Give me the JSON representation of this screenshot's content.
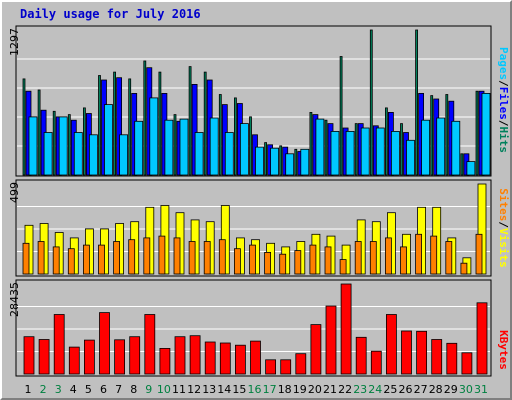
{
  "colors": {
    "hits": "#00805c",
    "files": "#0000ff",
    "pages": "#00c8ff",
    "visits": "#ffff00",
    "sites": "#ff8000",
    "kbytes": "#ff0000",
    "title": "#0000cc",
    "weekend": "#008040",
    "weekday": "#000000",
    "grid": "#ffffff"
  },
  "weekend_days": [
    2,
    3,
    9,
    10,
    16,
    17,
    23,
    24,
    30,
    31
  ],
  "chart_data": {
    "type": "bar",
    "title": "Daily usage for July 2016",
    "categories": [
      "1",
      "2",
      "3",
      "4",
      "5",
      "6",
      "7",
      "8",
      "9",
      "10",
      "11",
      "12",
      "13",
      "14",
      "15",
      "16",
      "17",
      "18",
      "19",
      "20",
      "21",
      "22",
      "23",
      "24",
      "25",
      "26",
      "27",
      "28",
      "29",
      "30",
      "31"
    ],
    "panels": [
      {
        "name": "top",
        "ymax_label": "1297",
        "ymax": 1297,
        "series": [
          {
            "name": "Hits",
            "values": [
              860,
              760,
              570,
              540,
              600,
              890,
              920,
              860,
              1020,
              920,
              540,
              970,
              920,
              720,
              690,
              520,
              290,
              260,
              230,
              560,
              490,
              1060,
              460,
              1297,
              600,
              460,
              1297,
              710,
              720,
              190,
              750
            ]
          },
          {
            "name": "Files",
            "values": [
              750,
              580,
              520,
              490,
              550,
              850,
              870,
              730,
              960,
              730,
              480,
              810,
              850,
              630,
              640,
              360,
              270,
              250,
              210,
              540,
              460,
              420,
              460,
              440,
              560,
              380,
              730,
              680,
              660,
              190,
              750
            ]
          },
          {
            "name": "Pages",
            "values": [
              520,
              380,
              520,
              380,
              360,
              630,
              360,
              480,
              690,
              490,
              500,
              380,
              510,
              380,
              460,
              250,
              240,
              190,
              230,
              500,
              390,
              390,
              420,
              420,
              390,
              310,
              490,
              510,
              480,
              120,
              730
            ]
          }
        ]
      },
      {
        "name": "middle",
        "ymax_label": "499",
        "ymax": 499,
        "series": [
          {
            "name": "Visits",
            "values": [
              270,
              280,
              230,
              200,
              250,
              250,
              280,
              290,
              370,
              380,
              340,
              300,
              290,
              380,
              200,
              190,
              170,
              150,
              180,
              220,
              210,
              160,
              300,
              290,
              340,
              220,
              370,
              370,
              200,
              90,
              499
            ]
          },
          {
            "name": "Sites",
            "values": [
              170,
              180,
              150,
              140,
              160,
              160,
              180,
              190,
              200,
              210,
              200,
              180,
              180,
              190,
              140,
              160,
              120,
              110,
              130,
              160,
              150,
              80,
              180,
              180,
              200,
              150,
              220,
              210,
              180,
              60,
              220
            ]
          }
        ]
      },
      {
        "name": "bottom",
        "ymax_label": "28435",
        "ymax": 28435,
        "series": [
          {
            "name": "KBytes",
            "values": [
              11800,
              10900,
              18800,
              8500,
              10700,
              19400,
              10800,
              11800,
              18800,
              8100,
              11800,
              12100,
              10100,
              9800,
              9100,
              10400,
              4500,
              4500,
              6400,
              15600,
              21500,
              28435,
              11600,
              7200,
              18800,
              13600,
              13500,
              10900,
              9700,
              6700,
              22500
            ]
          }
        ]
      }
    ],
    "legend_top": [
      "Pages",
      "/",
      "Files",
      "/",
      "Hits"
    ],
    "legend_middle": [
      "Sites",
      "/",
      "Visits"
    ],
    "legend_bottom": [
      "KBytes"
    ]
  }
}
